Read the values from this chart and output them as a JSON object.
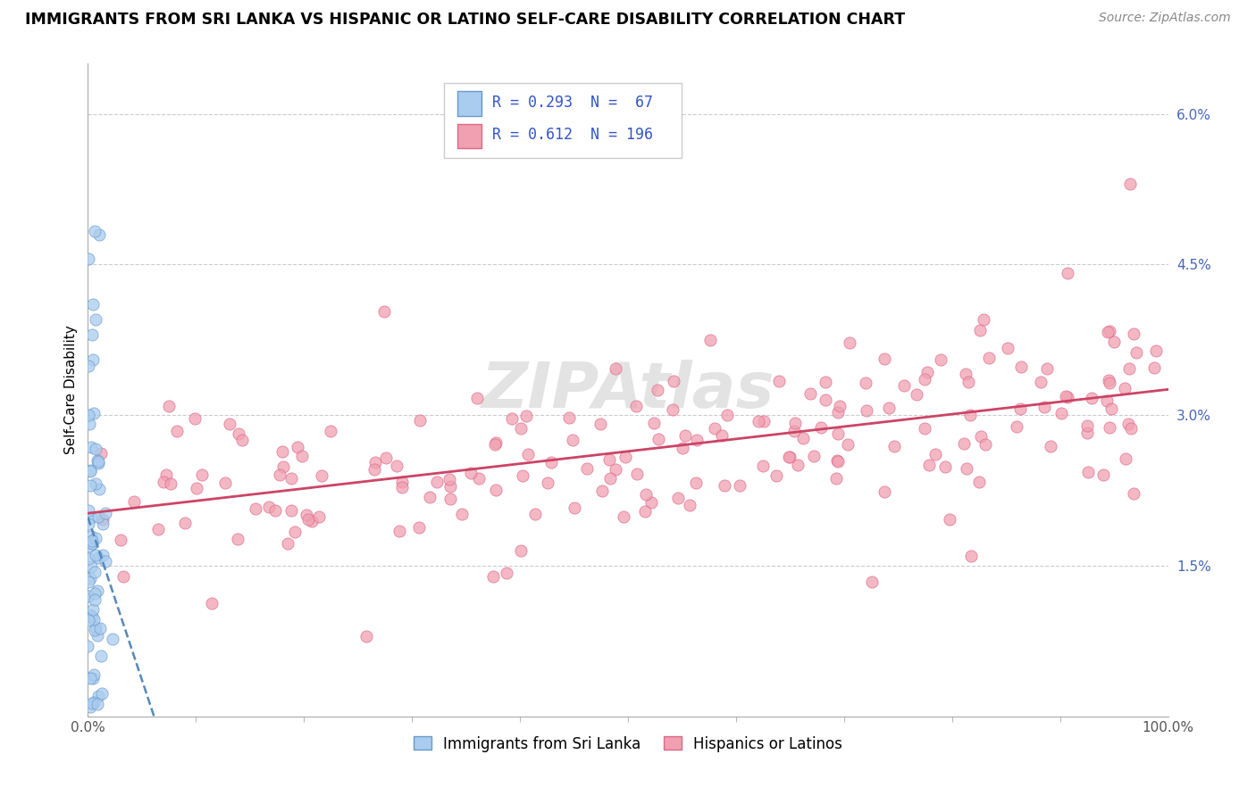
{
  "title": "IMMIGRANTS FROM SRI LANKA VS HISPANIC OR LATINO SELF-CARE DISABILITY CORRELATION CHART",
  "source": "Source: ZipAtlas.com",
  "ylabel": "Self-Care Disability",
  "ytick_vals": [
    0.015,
    0.03,
    0.045,
    0.06
  ],
  "ytick_labels": [
    "1.5%",
    "3.0%",
    "4.5%",
    "6.0%"
  ],
  "blue_R": 0.293,
  "blue_N": 67,
  "pink_R": 0.612,
  "pink_N": 196,
  "blue_fill": "#aaccee",
  "blue_edge": "#6699cc",
  "blue_line": "#5588bb",
  "pink_fill": "#f0a0b0",
  "pink_edge": "#dd6688",
  "pink_line": "#cc4466",
  "legend_label_blue": "Immigrants from Sri Lanka",
  "legend_label_pink": "Hispanics or Latinos",
  "watermark": "ZIPAtlas",
  "xlim": [
    0.0,
    1.0
  ],
  "ylim": [
    0.0,
    0.065
  ]
}
